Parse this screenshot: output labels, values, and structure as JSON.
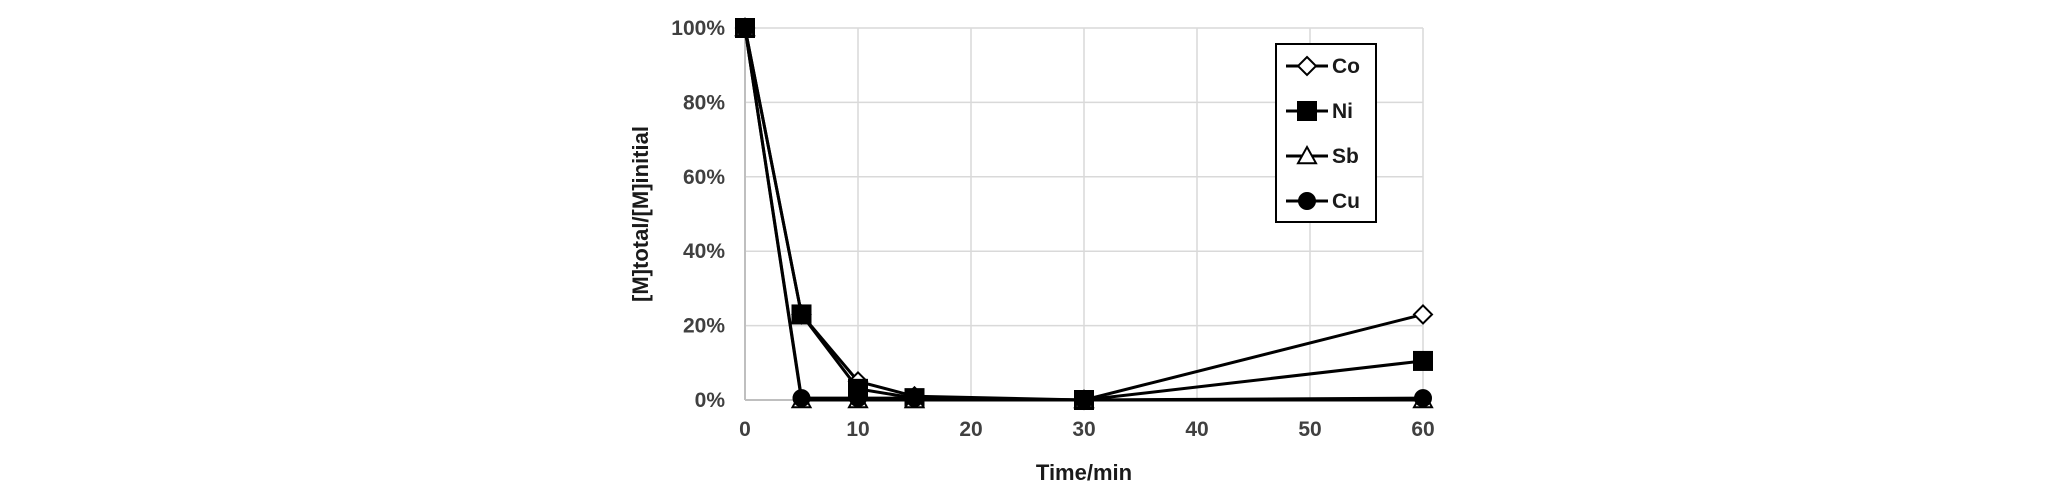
{
  "chart_data": {
    "type": "line",
    "title": "",
    "xlabel": "Time/min",
    "ylabel": "[M]total/[M]initial",
    "xlim": [
      0,
      60
    ],
    "ylim": [
      0,
      100
    ],
    "x_ticks": [
      0,
      10,
      20,
      30,
      40,
      50,
      60
    ],
    "y_ticks": [
      0,
      20,
      40,
      60,
      80,
      100
    ],
    "y_tick_suffix": "%",
    "grid": true,
    "legend_position": "top-right",
    "series": [
      {
        "name": "Co",
        "marker": "diamond-open",
        "x": [
          0,
          5,
          10,
          15,
          30,
          60
        ],
        "y": [
          100,
          23,
          5,
          1,
          0,
          23
        ]
      },
      {
        "name": "Ni",
        "marker": "square-filled",
        "x": [
          0,
          5,
          10,
          15,
          30,
          60
        ],
        "y": [
          100,
          23,
          3,
          0.5,
          0,
          10.5
        ]
      },
      {
        "name": "Sb",
        "marker": "triangle-open",
        "x": [
          0,
          5,
          10,
          15,
          30,
          60
        ],
        "y": [
          100,
          0,
          0,
          0,
          0,
          0
        ]
      },
      {
        "name": "Cu",
        "marker": "circle-filled",
        "x": [
          0,
          5,
          10,
          15,
          30,
          60
        ],
        "y": [
          100,
          0.5,
          0.5,
          0.5,
          0,
          0.5
        ]
      }
    ]
  }
}
